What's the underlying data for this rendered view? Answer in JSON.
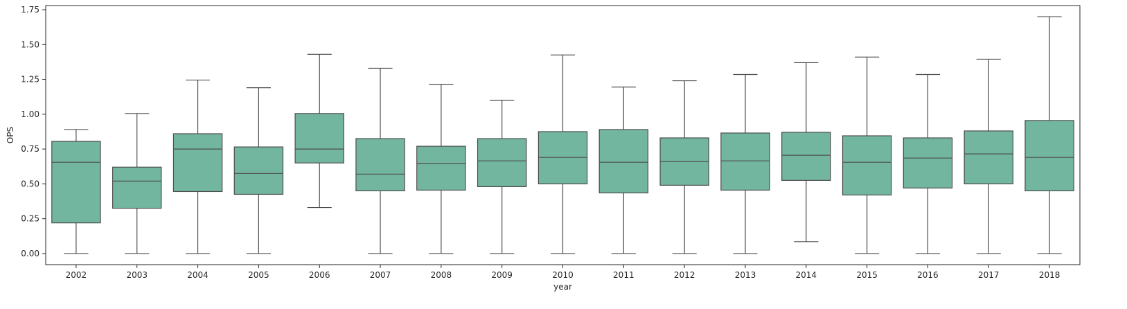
{
  "chart_data": {
    "type": "box",
    "xlabel": "year",
    "ylabel": "OPS",
    "ylim": [
      -0.08,
      1.78
    ],
    "yticks": [
      0.0,
      0.25,
      0.5,
      0.75,
      1.0,
      1.25,
      1.5,
      1.75
    ],
    "ytick_labels": [
      "0.00",
      "0.25",
      "0.50",
      "0.75",
      "1.00",
      "1.25",
      "1.50",
      "1.75"
    ],
    "grid": false,
    "box_color": "#73b6a0",
    "line_color": "#4d4d4d",
    "categories": [
      "2002",
      "2003",
      "2004",
      "2005",
      "2006",
      "2007",
      "2008",
      "2009",
      "2010",
      "2011",
      "2012",
      "2013",
      "2014",
      "2015",
      "2016",
      "2017",
      "2018"
    ],
    "boxes": [
      {
        "whisker_low": 0.0,
        "q1": 0.22,
        "median": 0.655,
        "q3": 0.805,
        "whisker_high": 0.89
      },
      {
        "whisker_low": 0.0,
        "q1": 0.325,
        "median": 0.52,
        "q3": 0.62,
        "whisker_high": 1.005
      },
      {
        "whisker_low": 0.0,
        "q1": 0.445,
        "median": 0.75,
        "q3": 0.86,
        "whisker_high": 1.245
      },
      {
        "whisker_low": 0.0,
        "q1": 0.425,
        "median": 0.575,
        "q3": 0.765,
        "whisker_high": 1.19
      },
      {
        "whisker_low": 0.33,
        "q1": 0.65,
        "median": 0.75,
        "q3": 1.005,
        "whisker_high": 1.43
      },
      {
        "whisker_low": 0.0,
        "q1": 0.45,
        "median": 0.57,
        "q3": 0.825,
        "whisker_high": 1.33
      },
      {
        "whisker_low": 0.0,
        "q1": 0.455,
        "median": 0.645,
        "q3": 0.77,
        "whisker_high": 1.215
      },
      {
        "whisker_low": 0.0,
        "q1": 0.48,
        "median": 0.665,
        "q3": 0.825,
        "whisker_high": 1.1
      },
      {
        "whisker_low": 0.0,
        "q1": 0.5,
        "median": 0.69,
        "q3": 0.875,
        "whisker_high": 1.425
      },
      {
        "whisker_low": 0.0,
        "q1": 0.435,
        "median": 0.655,
        "q3": 0.89,
        "whisker_high": 1.195
      },
      {
        "whisker_low": 0.0,
        "q1": 0.49,
        "median": 0.66,
        "q3": 0.83,
        "whisker_high": 1.24
      },
      {
        "whisker_low": 0.0,
        "q1": 0.455,
        "median": 0.665,
        "q3": 0.865,
        "whisker_high": 1.285
      },
      {
        "whisker_low": 0.085,
        "q1": 0.525,
        "median": 0.705,
        "q3": 0.87,
        "whisker_high": 1.37
      },
      {
        "whisker_low": 0.0,
        "q1": 0.42,
        "median": 0.655,
        "q3": 0.845,
        "whisker_high": 1.41
      },
      {
        "whisker_low": 0.0,
        "q1": 0.47,
        "median": 0.685,
        "q3": 0.83,
        "whisker_high": 1.285
      },
      {
        "whisker_low": 0.0,
        "q1": 0.5,
        "median": 0.715,
        "q3": 0.88,
        "whisker_high": 1.395
      },
      {
        "whisker_low": 0.0,
        "q1": 0.45,
        "median": 0.69,
        "q3": 0.955,
        "whisker_high": 1.7
      }
    ]
  }
}
